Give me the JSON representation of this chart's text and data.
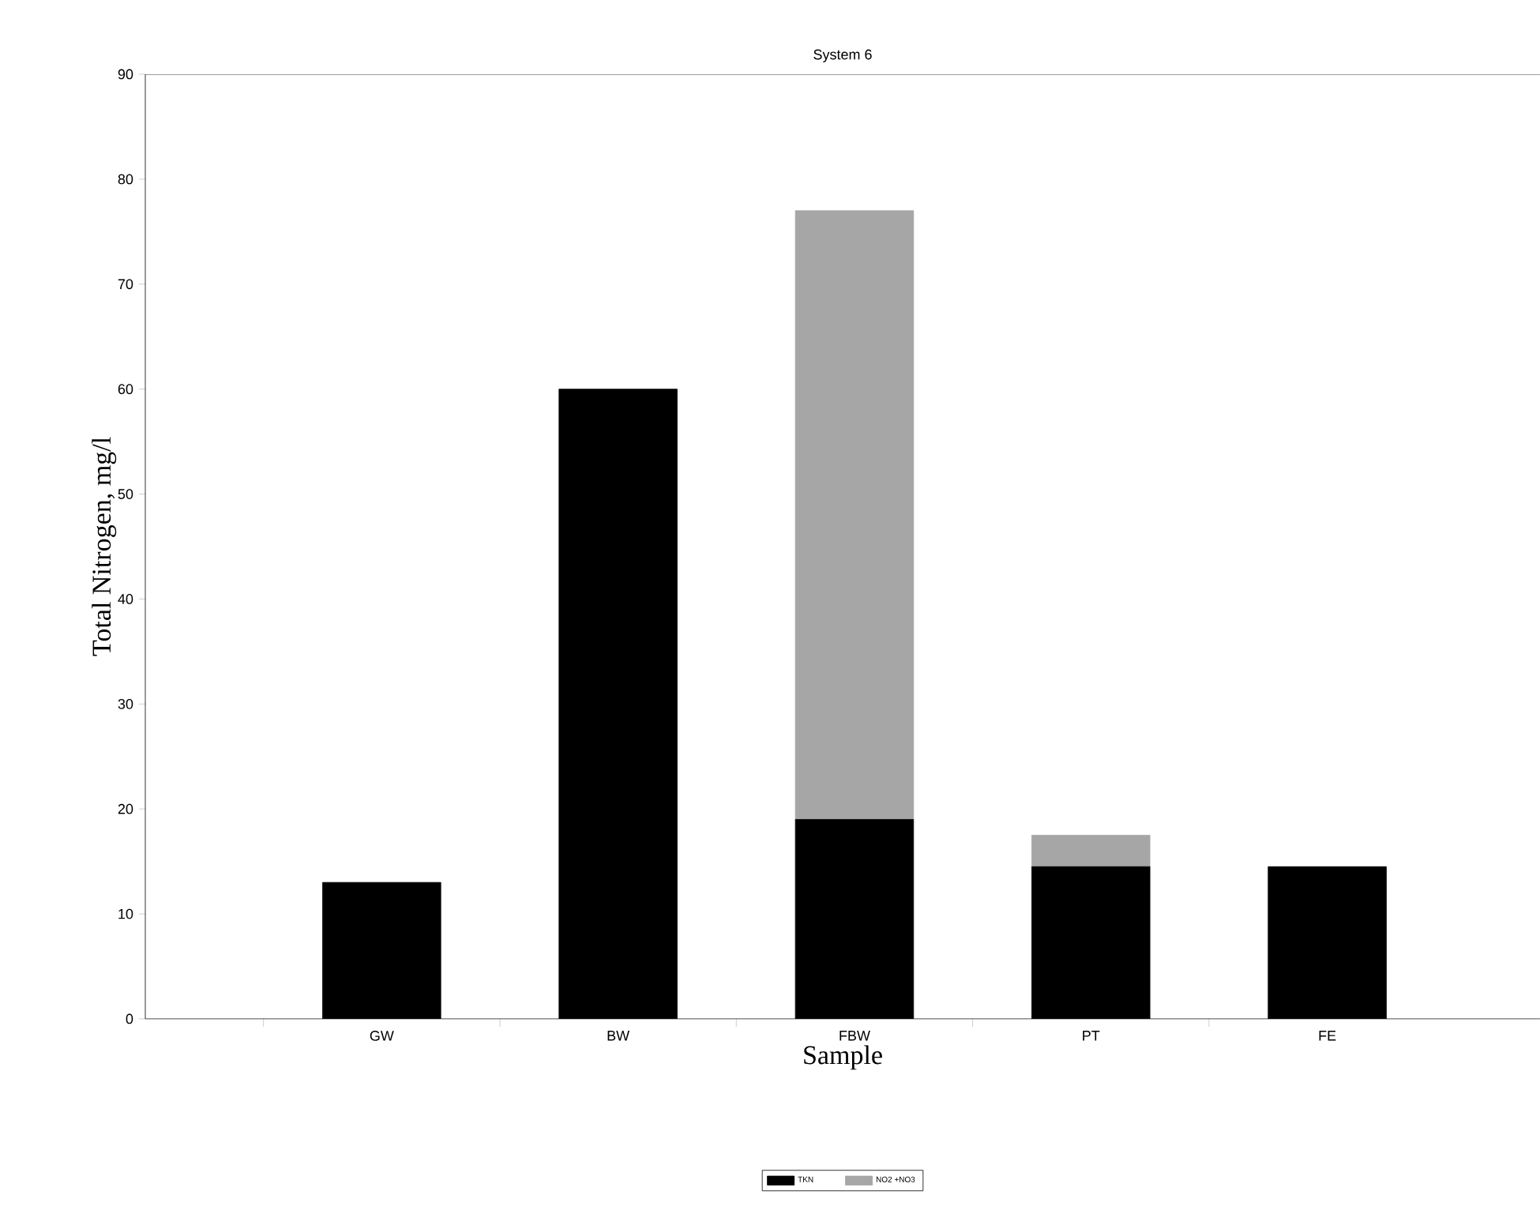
{
  "chart_data": {
    "type": "bar",
    "title": "System 6",
    "xlabel": "Sample",
    "ylabel": "Total Nitrogen, mg/l",
    "categories": [
      "GW",
      "BW",
      "FBW",
      "PT",
      "FE"
    ],
    "stacked": true,
    "legend": "bottom",
    "ylim": [
      0,
      90
    ],
    "yticks": [
      0,
      10,
      20,
      30,
      40,
      50,
      60,
      70,
      80,
      90
    ],
    "series": [
      {
        "name": "TKN",
        "color": "#000000",
        "values": [
          13,
          60,
          19,
          14.5,
          14.5
        ]
      },
      {
        "name": "NO2 +NO3",
        "color": "#a6a6a6",
        "values": [
          null,
          null,
          58,
          3,
          null
        ]
      }
    ]
  }
}
